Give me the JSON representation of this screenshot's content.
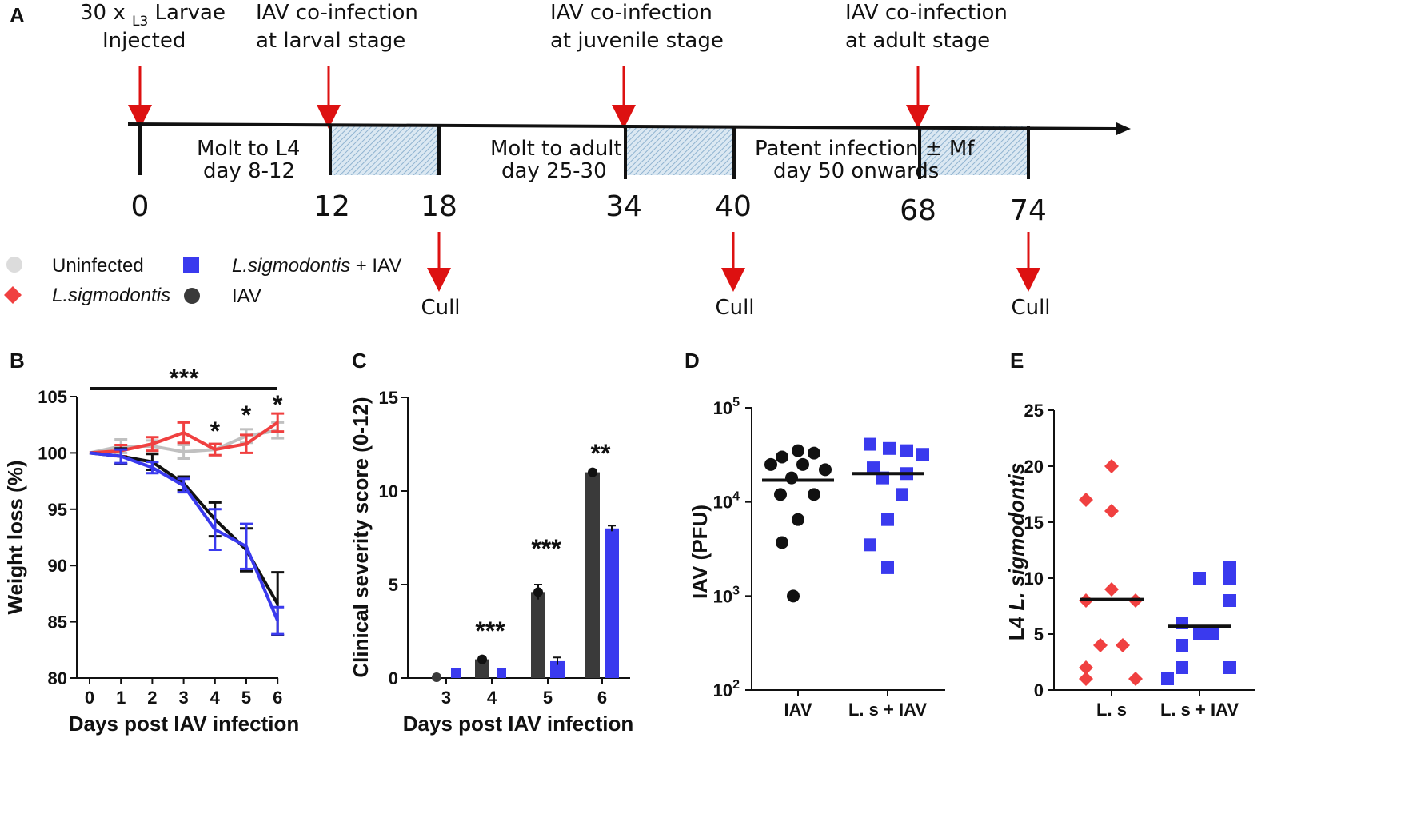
{
  "colors": {
    "uninfected": "#c8c8c8",
    "ls": "#f04040",
    "lsiav": "#3a3aee",
    "iav": "#3a3a3a",
    "black": "#111111",
    "arrow": "#dd1111",
    "hatch": "#8fb3d0"
  },
  "panel_a": {
    "label": "A",
    "inj_l1": "30 x ",
    "inj_sub": "L3",
    "inj_l1b": " Larvae",
    "inj_l2": "Injected",
    "co1_l1": "IAV co-infection",
    "co1_l2": "at larval stage",
    "co2_l1": "IAV co-infection",
    "co2_l2": "at juvenile stage",
    "co3_l1": "IAV co-infection",
    "co3_l2": "at adult stage",
    "seg1_l1": "Molt to L4",
    "seg1_l2": "day 8-12",
    "seg2_l1": "Molt to adult",
    "seg2_l2": "day 25-30",
    "seg3_l1": "Patent infection ± Mf",
    "seg3_l2": "day 50 onwards",
    "days": [
      "0",
      "12",
      "18",
      "34",
      "40",
      "68",
      "74"
    ],
    "cull": "Cull"
  },
  "legend": {
    "uninfected": "Uninfected",
    "ls": "L.sigmodontis",
    "lsiav_italic": "L.sigmodontis",
    "lsiav_rest": " + IAV",
    "iav": "IAV"
  },
  "chart_data": [
    {
      "panel": "B",
      "type": "line",
      "x": [
        0,
        1,
        2,
        3,
        4,
        5,
        6
      ],
      "xlabel": "Days post IAV infection",
      "ylabel": "Weight loss (%)",
      "ylim": [
        80,
        105
      ],
      "yticks": [
        "80",
        "85",
        "90",
        "95",
        "100",
        "105"
      ],
      "xticks": [
        "0",
        "1",
        "2",
        "3",
        "4",
        "5",
        "6"
      ],
      "series": [
        {
          "name": "Uninfected",
          "color": "#c0c0c0",
          "values": [
            100,
            100.6,
            100.6,
            100.1,
            100.3,
            101.5,
            102.0
          ],
          "err": [
            0,
            0.6,
            0.5,
            0.6,
            0.5,
            0.6,
            0.7
          ]
        },
        {
          "name": "L.sigmodontis",
          "color": "#f04040",
          "values": [
            100,
            100.2,
            100.8,
            101.8,
            100.3,
            100.8,
            102.7
          ],
          "err": [
            0,
            0.5,
            0.6,
            0.9,
            0.5,
            0.8,
            0.8
          ]
        },
        {
          "name": "IAV",
          "color": "#111111",
          "values": [
            100,
            99.7,
            99.2,
            97.3,
            94.1,
            91.4,
            86.6
          ],
          "err": [
            0,
            0.7,
            0.7,
            0.6,
            1.5,
            1.9,
            2.8
          ]
        },
        {
          "name": "L.sigmodontis + IAV",
          "color": "#3a3aee",
          "values": [
            100,
            99.7,
            98.7,
            97.1,
            93.2,
            91.7,
            85.1
          ],
          "err": [
            0,
            0.6,
            0.5,
            0.6,
            1.8,
            2.0,
            1.2
          ]
        }
      ],
      "sig_bar": "***",
      "sig": [
        {
          "day": 4,
          "text": "*"
        },
        {
          "day": 5,
          "text": "*"
        },
        {
          "day": 6,
          "text": "*"
        }
      ]
    },
    {
      "panel": "C",
      "type": "bar",
      "categories": [
        "3",
        "4",
        "5",
        "6"
      ],
      "xlabel": "Days post IAV infection",
      "ylabel": "Clinical severity score (0-12)",
      "ylim": [
        0,
        15
      ],
      "yticks": [
        "0",
        "5",
        "10",
        "15"
      ],
      "series": [
        {
          "name": "IAV",
          "color": "#3a3a3a",
          "values": [
            0,
            1,
            4.6,
            11
          ],
          "err": [
            0,
            0.1,
            0.4,
            0.1
          ]
        },
        {
          "name": "L.sigmodontis + IAV",
          "color": "#3a3aee",
          "values": [
            0,
            0,
            0.9,
            8
          ],
          "err": [
            0,
            0,
            0.2,
            0.15
          ]
        }
      ],
      "sig": [
        "",
        "***",
        "***",
        "**"
      ]
    },
    {
      "panel": "D",
      "type": "scatter",
      "categories": [
        "IAV",
        "L. s + IAV"
      ],
      "ylabel": "IAV (PFU)",
      "scale": "log",
      "ylim": [
        100,
        100000
      ],
      "yticks": [
        {
          "base": "10",
          "exp": "2"
        },
        {
          "base": "10",
          "exp": "3"
        },
        {
          "base": "10",
          "exp": "4"
        },
        {
          "base": "10",
          "exp": "5"
        }
      ],
      "groups": [
        {
          "name": "IAV",
          "color": "#111111",
          "values": [
            35000,
            33000,
            30000,
            25000,
            25000,
            22000,
            18000,
            12000,
            12000,
            6500,
            3700,
            1000
          ],
          "median": 17000
        },
        {
          "name": "L. s + IAV",
          "color": "#3a3aee",
          "values": [
            41000,
            37000,
            35000,
            32000,
            23000,
            20000,
            18000,
            12000,
            6500,
            3500,
            2000
          ],
          "median": 20000
        }
      ]
    },
    {
      "panel": "E",
      "type": "scatter",
      "categories": [
        "L. s",
        "L. s + IAV"
      ],
      "ylabel_prefix": "L4 ",
      "ylabel_italic": "L. sigmodontis",
      "ylim": [
        0,
        25
      ],
      "yticks": [
        "0",
        "5",
        "10",
        "15",
        "20",
        "25"
      ],
      "groups": [
        {
          "name": "L. s",
          "color": "#f04040",
          "values": [
            20,
            17,
            16,
            9,
            8,
            8,
            4,
            4,
            2,
            1,
            1
          ],
          "median": 8.1
        },
        {
          "name": "L. s + IAV",
          "color": "#3a3aee",
          "values": [
            11,
            10,
            10,
            8,
            6,
            5,
            5,
            4,
            2,
            2,
            1
          ],
          "median": 5.7
        }
      ]
    }
  ]
}
